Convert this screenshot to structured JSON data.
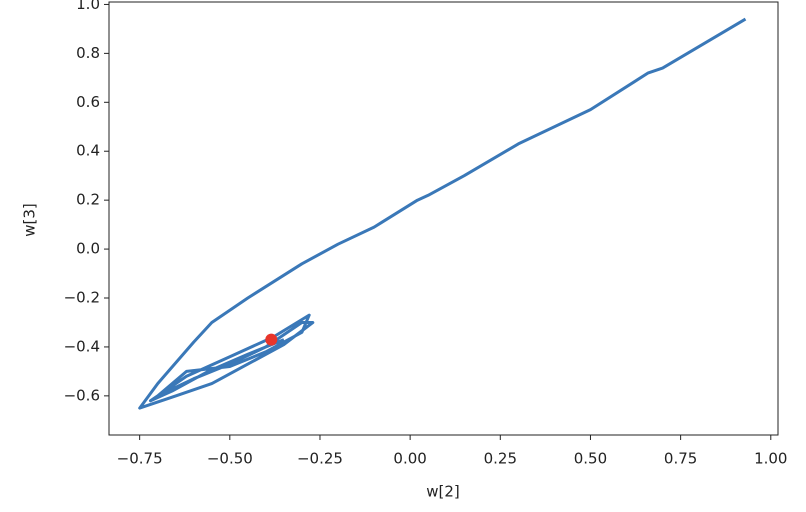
{
  "chart_data": {
    "type": "line",
    "xlabel": "w[2]",
    "ylabel": "w[3]",
    "xlim": [
      -0.835,
      1.02
    ],
    "ylim": [
      -0.76,
      1.01
    ],
    "xticks": [
      {
        "value": -0.75,
        "label": "−0.75"
      },
      {
        "value": -0.5,
        "label": "−0.50"
      },
      {
        "value": -0.25,
        "label": "−0.25"
      },
      {
        "value": 0,
        "label": "0.00"
      },
      0.25,
      {
        "value": 0.5,
        "label": "0.50"
      },
      0.75,
      {
        "value": 1,
        "label": "1.00"
      }
    ],
    "yticks": [
      {
        "value": -0.6,
        "label": "−0.6"
      },
      {
        "value": -0.4,
        "label": "−0.4"
      },
      {
        "value": -0.2,
        "label": "−0.2"
      },
      {
        "value": 0,
        "label": "0.0"
      },
      0.2,
      0.4,
      0.6,
      0.8,
      {
        "value": 1,
        "label": "1.0"
      }
    ],
    "series": [
      {
        "color": "#3a78b8",
        "x": [
          0.93,
          0.7,
          0.66,
          0.5,
          0.3,
          0.15,
          0.05,
          0.02,
          -0.1,
          -0.2,
          -0.3,
          -0.45,
          -0.55,
          -0.6,
          -0.7,
          -0.75,
          -0.65,
          -0.55,
          -0.45,
          -0.35,
          -0.27,
          -0.3,
          -0.4,
          -0.5,
          -0.6,
          -0.7,
          -0.62,
          -0.5,
          -0.4,
          -0.3,
          -0.28,
          -0.38,
          -0.5,
          -0.62,
          -0.72,
          -0.66,
          -0.56,
          -0.45,
          -0.35
        ],
        "y": [
          0.94,
          0.74,
          0.72,
          0.57,
          0.43,
          0.3,
          0.22,
          0.2,
          0.09,
          0.02,
          -0.06,
          -0.2,
          -0.3,
          -0.38,
          -0.55,
          -0.65,
          -0.6,
          -0.55,
          -0.47,
          -0.39,
          -0.3,
          -0.3,
          -0.4,
          -0.47,
          -0.53,
          -0.6,
          -0.5,
          -0.48,
          -0.42,
          -0.34,
          -0.27,
          -0.36,
          -0.44,
          -0.52,
          -0.62,
          -0.58,
          -0.5,
          -0.43,
          -0.37
        ]
      }
    ],
    "point": {
      "x": -0.385,
      "y": -0.37,
      "color": "#e8352a"
    }
  }
}
